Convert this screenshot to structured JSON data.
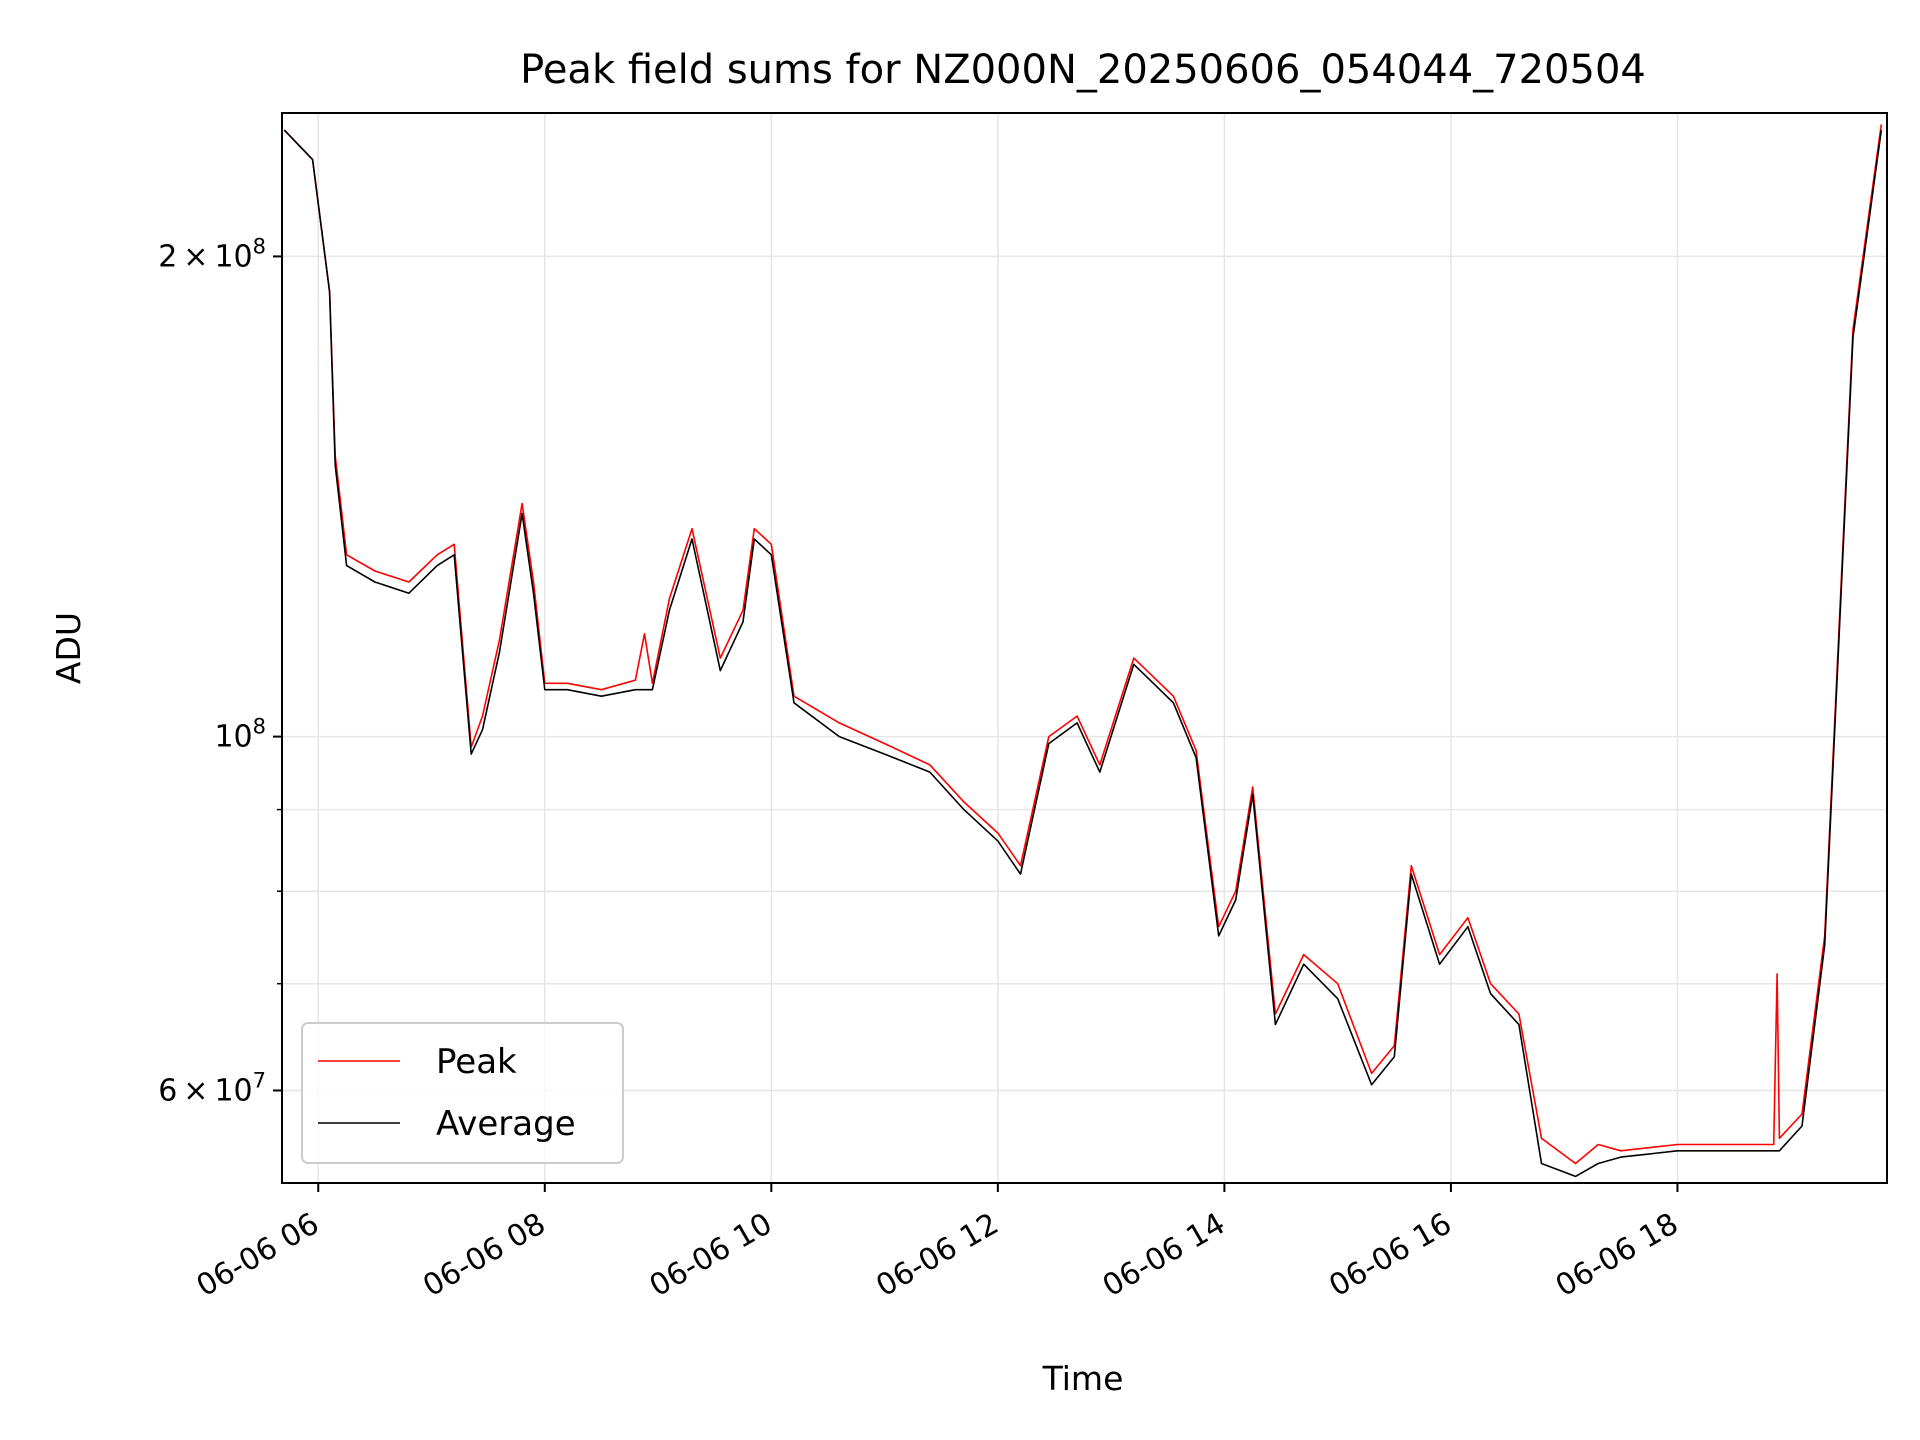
{
  "chart_data": {
    "type": "line",
    "title": "Peak field sums for NZ000N_20250606_054044_720504",
    "xlabel": "Time",
    "ylabel": "ADU",
    "x_ticks": [
      "06-06 06",
      "06-06 08",
      "06-06 10",
      "06-06 12",
      "06-06 14",
      "06-06 16",
      "06-06 18"
    ],
    "x_tick_hours": [
      6,
      8,
      10,
      12,
      14,
      16,
      18
    ],
    "xlim_hours": [
      5.68,
      19.85
    ],
    "y_scale": "log",
    "ylim": [
      52500000,
      246000000
    ],
    "y_major_ticks": [
      {
        "value": 200000000,
        "mant": "2",
        "base": "10",
        "exp": "8"
      },
      {
        "value": 100000000,
        "mant": "",
        "base": "10",
        "exp": "8"
      },
      {
        "value": 60000000,
        "mant": "6",
        "base": "10",
        "exp": "7"
      }
    ],
    "times_symbol": "×",
    "y_minor_ticks": [
      70000000,
      80000000,
      90000000
    ],
    "grid": true,
    "legend_position": "lower-left",
    "colors": {
      "peak": "#ff0000",
      "average": "#000000",
      "grid": "#e6e6e6"
    },
    "series": [
      {
        "name": "Peak",
        "color": "#ff0000",
        "x_hours": [
          5.7,
          5.95,
          6.1,
          6.15,
          6.25,
          6.5,
          6.8,
          7.05,
          7.2,
          7.35,
          7.45,
          7.6,
          7.8,
          7.9,
          8.0,
          8.2,
          8.5,
          8.8,
          8.88,
          8.95,
          9.1,
          9.3,
          9.55,
          9.75,
          9.85,
          10.0,
          10.2,
          10.6,
          11.0,
          11.4,
          11.7,
          12.0,
          12.2,
          12.45,
          12.7,
          12.9,
          13.2,
          13.55,
          13.75,
          13.95,
          14.1,
          14.25,
          14.45,
          14.7,
          15.0,
          15.3,
          15.5,
          15.65,
          15.9,
          16.15,
          16.35,
          16.6,
          16.8,
          17.1,
          17.3,
          17.5,
          18.0,
          18.5,
          18.85,
          18.88,
          18.9,
          19.1,
          19.3,
          19.55,
          19.8
        ],
        "y": [
          240000000,
          230000000,
          190000000,
          150000000,
          130000000,
          127000000,
          125000000,
          130000000,
          132000000,
          98500000,
          103000000,
          115000000,
          140000000,
          125000000,
          108000000,
          108000000,
          107000000,
          108500000,
          116000000,
          108000000,
          122000000,
          135000000,
          112000000,
          120000000,
          135000000,
          132000000,
          106000000,
          102000000,
          99000000,
          96000000,
          91000000,
          87000000,
          83000000,
          100000000,
          103000000,
          96000000,
          112000000,
          106000000,
          98000000,
          76000000,
          80000000,
          93000000,
          67000000,
          73000000,
          70000000,
          61500000,
          64000000,
          83000000,
          73000000,
          77000000,
          70000000,
          67000000,
          56000000,
          54000000,
          55500000,
          55000000,
          55500000,
          55500000,
          55500000,
          71000000,
          56000000,
          58000000,
          75000000,
          180000000,
          242000000
        ]
      },
      {
        "name": "Average",
        "color": "#000000",
        "x_hours": [
          5.7,
          5.95,
          6.1,
          6.15,
          6.25,
          6.5,
          6.8,
          7.05,
          7.2,
          7.35,
          7.45,
          7.6,
          7.8,
          7.9,
          8.0,
          8.2,
          8.5,
          8.8,
          8.95,
          9.1,
          9.3,
          9.55,
          9.75,
          9.85,
          10.0,
          10.2,
          10.6,
          11.0,
          11.4,
          11.7,
          12.0,
          12.2,
          12.45,
          12.7,
          12.9,
          13.2,
          13.55,
          13.75,
          13.95,
          14.1,
          14.25,
          14.45,
          14.7,
          15.0,
          15.3,
          15.5,
          15.65,
          15.9,
          16.15,
          16.35,
          16.6,
          16.8,
          17.1,
          17.3,
          17.5,
          18.0,
          18.5,
          18.9,
          19.1,
          19.3,
          19.55,
          19.8
        ],
        "y": [
          240000000,
          230000000,
          190000000,
          148000000,
          128000000,
          125000000,
          123000000,
          128000000,
          130000000,
          97500000,
          101000000,
          113000000,
          138000000,
          123000000,
          107000000,
          107000000,
          106000000,
          107000000,
          107000000,
          120000000,
          133000000,
          110000000,
          118000000,
          133000000,
          130000000,
          105000000,
          100000000,
          97500000,
          95000000,
          90000000,
          86000000,
          82000000,
          99000000,
          102000000,
          95000000,
          111000000,
          105000000,
          97000000,
          75000000,
          79000000,
          92000000,
          66000000,
          72000000,
          68500000,
          60500000,
          63000000,
          82000000,
          72000000,
          76000000,
          69000000,
          66000000,
          54000000,
          53000000,
          54000000,
          54500000,
          55000000,
          55000000,
          55000000,
          57000000,
          74000000,
          178000000,
          240000000
        ]
      }
    ]
  }
}
